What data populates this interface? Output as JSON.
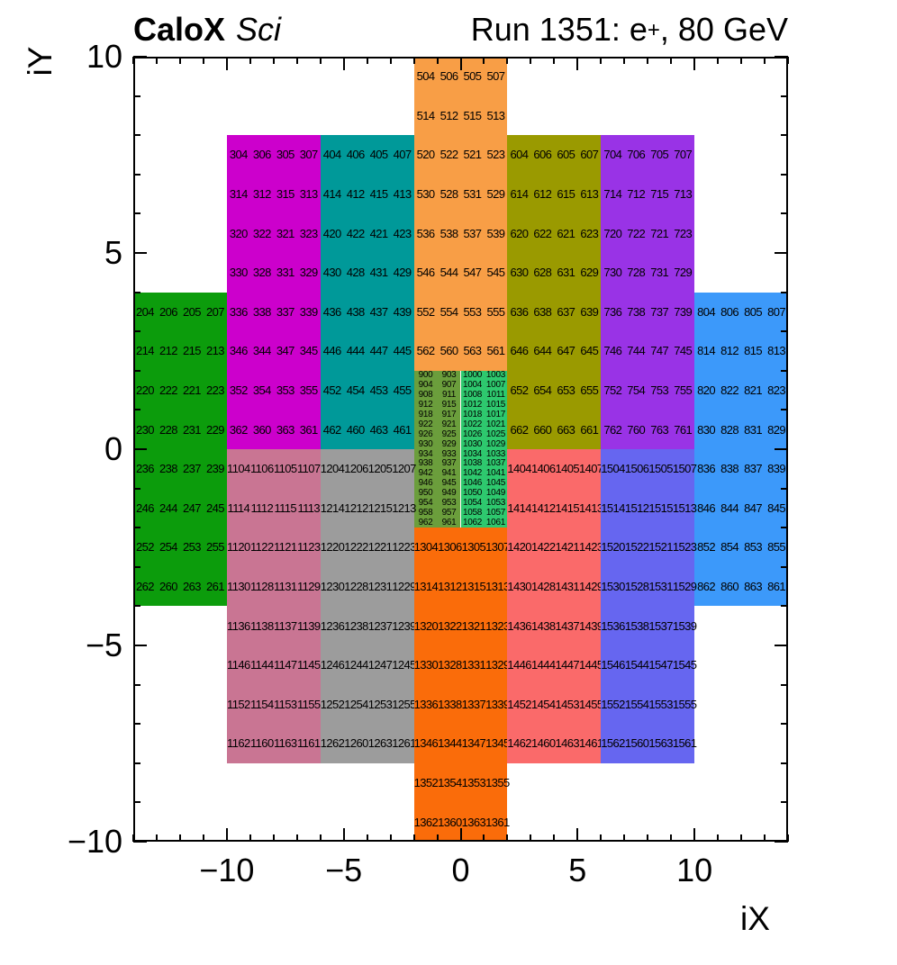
{
  "titles": {
    "left_bold": "CaloX",
    "left_italic": "Sci",
    "right_prefix": "Run 1351: e",
    "right_sup": "+",
    "right_suffix": ", 80 GeV"
  },
  "chart_data": {
    "type": "heatmap",
    "title_left": "CaloX Sci",
    "title_right": "Run 1351: e+, 80 GeV",
    "xlabel": "iX",
    "ylabel": "iY",
    "xlim": [
      -14,
      14
    ],
    "ylim": [
      -10,
      10
    ],
    "x_major_ticks": [
      -10,
      -5,
      0,
      5,
      10
    ],
    "y_major_ticks": [
      -10,
      -5,
      0,
      5,
      10
    ],
    "grid": false,
    "blocks": [
      {
        "id": "200s",
        "color": "#0C9C0C",
        "x": [
          -14,
          -10
        ],
        "y": [
          -4,
          4
        ],
        "rows": [
          [
            204,
            206,
            205,
            207
          ],
          [
            214,
            212,
            215,
            213
          ],
          [
            220,
            222,
            221,
            223
          ],
          [
            230,
            228,
            231,
            229
          ],
          [
            236,
            238,
            237,
            239
          ],
          [
            246,
            244,
            247,
            245
          ],
          [
            252,
            254,
            253,
            255
          ],
          [
            262,
            260,
            263,
            261
          ]
        ]
      },
      {
        "id": "300s",
        "color": "#CC00CC",
        "x": [
          -10,
          -6
        ],
        "y": [
          0,
          8
        ],
        "rows": [
          [
            304,
            306,
            305,
            307
          ],
          [
            314,
            312,
            315,
            313
          ],
          [
            320,
            322,
            321,
            323
          ],
          [
            330,
            328,
            331,
            329
          ],
          [
            336,
            338,
            337,
            339
          ],
          [
            346,
            344,
            347,
            345
          ],
          [
            352,
            354,
            353,
            355
          ],
          [
            362,
            360,
            363,
            361
          ]
        ]
      },
      {
        "id": "400s",
        "color": "#009999",
        "x": [
          -6,
          -2
        ],
        "y": [
          0,
          8
        ],
        "rows": [
          [
            404,
            406,
            405,
            407
          ],
          [
            414,
            412,
            415,
            413
          ],
          [
            420,
            422,
            421,
            423
          ],
          [
            430,
            428,
            431,
            429
          ],
          [
            436,
            438,
            437,
            439
          ],
          [
            446,
            444,
            447,
            445
          ],
          [
            452,
            454,
            453,
            455
          ],
          [
            462,
            460,
            463,
            461
          ]
        ]
      },
      {
        "id": "500s",
        "color": "#F89E46",
        "x": [
          -2,
          2
        ],
        "y": [
          2,
          10
        ],
        "rows": [
          [
            504,
            506,
            505,
            507
          ],
          [
            514,
            512,
            515,
            513
          ],
          [
            520,
            522,
            521,
            523
          ],
          [
            530,
            528,
            531,
            529
          ],
          [
            536,
            538,
            537,
            539
          ],
          [
            546,
            544,
            547,
            545
          ],
          [
            552,
            554,
            553,
            555
          ],
          [
            562,
            560,
            563,
            561
          ]
        ]
      },
      {
        "id": "600s",
        "color": "#9A9A00",
        "x": [
          2,
          6
        ],
        "y": [
          0,
          8
        ],
        "rows": [
          [
            604,
            606,
            605,
            607
          ],
          [
            614,
            612,
            615,
            613
          ],
          [
            620,
            622,
            621,
            623
          ],
          [
            630,
            628,
            631,
            629
          ],
          [
            636,
            638,
            637,
            639
          ],
          [
            646,
            644,
            647,
            645
          ],
          [
            652,
            654,
            653,
            655
          ],
          [
            662,
            660,
            663,
            661
          ]
        ]
      },
      {
        "id": "700s",
        "color": "#9933E6",
        "x": [
          6,
          10
        ],
        "y": [
          0,
          8
        ],
        "rows": [
          [
            704,
            706,
            705,
            707
          ],
          [
            714,
            712,
            715,
            713
          ],
          [
            720,
            722,
            721,
            723
          ],
          [
            730,
            728,
            731,
            729
          ],
          [
            736,
            738,
            737,
            739
          ],
          [
            746,
            744,
            747,
            745
          ],
          [
            752,
            754,
            753,
            755
          ],
          [
            762,
            760,
            763,
            761
          ]
        ]
      },
      {
        "id": "800s",
        "color": "#3C99FA",
        "x": [
          10,
          14
        ],
        "y": [
          -4,
          4
        ],
        "rows": [
          [
            804,
            806,
            805,
            807
          ],
          [
            814,
            812,
            815,
            813
          ],
          [
            820,
            822,
            821,
            823
          ],
          [
            830,
            828,
            831,
            829
          ],
          [
            836,
            838,
            837,
            839
          ],
          [
            846,
            844,
            847,
            845
          ],
          [
            852,
            854,
            853,
            855
          ],
          [
            862,
            860,
            863,
            861
          ]
        ]
      },
      {
        "id": "900s",
        "color": "#6B9E3C",
        "x": [
          -2,
          0
        ],
        "y": [
          -2,
          2
        ],
        "mini": true,
        "rows": [
          [
            900,
            903
          ],
          [
            904,
            907
          ],
          [
            908,
            911
          ],
          [
            912,
            915
          ],
          [
            918,
            917
          ],
          [
            922,
            921
          ],
          [
            926,
            925
          ],
          [
            930,
            929
          ],
          [
            934,
            933
          ],
          [
            938,
            937
          ],
          [
            942,
            941
          ],
          [
            946,
            945
          ],
          [
            950,
            949
          ],
          [
            954,
            953
          ],
          [
            958,
            957
          ],
          [
            962,
            961
          ]
        ]
      },
      {
        "id": "1000s",
        "color": "#2EC86E",
        "x": [
          0,
          2
        ],
        "y": [
          -2,
          2
        ],
        "mini": true,
        "rows": [
          [
            1000,
            1003
          ],
          [
            1004,
            1007
          ],
          [
            1008,
            1011
          ],
          [
            1012,
            1015
          ],
          [
            1018,
            1017
          ],
          [
            1022,
            1021
          ],
          [
            1026,
            1025
          ],
          [
            1030,
            1029
          ],
          [
            1034,
            1033
          ],
          [
            1038,
            1037
          ],
          [
            1042,
            1041
          ],
          [
            1046,
            1045
          ],
          [
            1050,
            1049
          ],
          [
            1054,
            1053
          ],
          [
            1058,
            1057
          ],
          [
            1062,
            1061
          ]
        ]
      },
      {
        "id": "1100s",
        "color": "#C97593",
        "x": [
          -10,
          -6
        ],
        "y": [
          -8,
          0
        ],
        "rows": [
          [
            1104,
            1106,
            1105,
            1107
          ],
          [
            1114,
            1112,
            1115,
            1113
          ],
          [
            1120,
            1122,
            1121,
            1123
          ],
          [
            1130,
            1128,
            1131,
            1129
          ],
          [
            1136,
            1138,
            1137,
            1139
          ],
          [
            1146,
            1144,
            1147,
            1145
          ],
          [
            1152,
            1154,
            1153,
            1155
          ],
          [
            1162,
            1160,
            1163,
            1161
          ]
        ]
      },
      {
        "id": "1200s",
        "color": "#9C9C9C",
        "x": [
          -6,
          -2
        ],
        "y": [
          -8,
          0
        ],
        "rows": [
          [
            1204,
            1206,
            1205,
            1207
          ],
          [
            1214,
            1212,
            1215,
            1213
          ],
          [
            1220,
            1222,
            1221,
            1223
          ],
          [
            1230,
            1228,
            1231,
            1229
          ],
          [
            1236,
            1238,
            1237,
            1239
          ],
          [
            1246,
            1244,
            1247,
            1245
          ],
          [
            1252,
            1254,
            1253,
            1255
          ],
          [
            1262,
            1260,
            1263,
            1261
          ]
        ]
      },
      {
        "id": "1300s",
        "color": "#FA6C0A",
        "x": [
          -2,
          2
        ],
        "y": [
          -10,
          -2
        ],
        "rows": [
          [
            1304,
            1306,
            1305,
            1307
          ],
          [
            1314,
            1312,
            1315,
            1313
          ],
          [
            1320,
            1322,
            1321,
            1323
          ],
          [
            1330,
            1328,
            1331,
            1329
          ],
          [
            1336,
            1338,
            1337,
            1339
          ],
          [
            1346,
            1344,
            1347,
            1345
          ],
          [
            1352,
            1354,
            1353,
            1355
          ],
          [
            1362,
            1360,
            1363,
            1361
          ]
        ]
      },
      {
        "id": "1400s",
        "color": "#FA6A6A",
        "x": [
          2,
          6
        ],
        "y": [
          -8,
          0
        ],
        "rows": [
          [
            1404,
            1406,
            1405,
            1407
          ],
          [
            1414,
            1412,
            1415,
            1413
          ],
          [
            1420,
            1422,
            1421,
            1423
          ],
          [
            1430,
            1428,
            1431,
            1429
          ],
          [
            1436,
            1438,
            1437,
            1439
          ],
          [
            1446,
            1444,
            1447,
            1445
          ],
          [
            1452,
            1454,
            1453,
            1455
          ],
          [
            1462,
            1460,
            1463,
            1461
          ]
        ]
      },
      {
        "id": "1500s",
        "color": "#6666F0",
        "x": [
          6,
          10
        ],
        "y": [
          -8,
          0
        ],
        "rows": [
          [
            1504,
            1506,
            1505,
            1507
          ],
          [
            1514,
            1512,
            1515,
            1513
          ],
          [
            1520,
            1522,
            1521,
            1523
          ],
          [
            1530,
            1528,
            1531,
            1529
          ],
          [
            1536,
            1538,
            1537,
            1539
          ],
          [
            1546,
            1544,
            1547,
            1545
          ],
          [
            1552,
            1554,
            1553,
            1555
          ],
          [
            1562,
            1560,
            1563,
            1561
          ]
        ]
      }
    ]
  }
}
